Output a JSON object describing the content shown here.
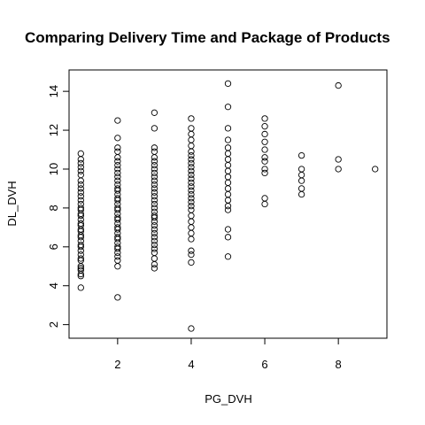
{
  "chart_data": {
    "type": "scatter",
    "title": "Comparing Delivery Time and Package of Products",
    "xlabel": "PG_DVH",
    "ylabel": "DL_DVH",
    "xlim": [
      0.68,
      9.32
    ],
    "ylim": [
      1.3,
      15.1
    ],
    "x_ticks": [
      2,
      4,
      6,
      8
    ],
    "y_ticks": [
      2,
      4,
      6,
      8,
      10,
      12,
      14
    ],
    "grid": false,
    "legend": "none",
    "point_color": "#000000",
    "points": [
      [
        1,
        3.9
      ],
      [
        1,
        4.5
      ],
      [
        1,
        4.6
      ],
      [
        1,
        4.8
      ],
      [
        1,
        4.9
      ],
      [
        1,
        5.0
      ],
      [
        1,
        5.3
      ],
      [
        1,
        5.4
      ],
      [
        1,
        5.6
      ],
      [
        1,
        5.8
      ],
      [
        1,
        6.0
      ],
      [
        1,
        6.1
      ],
      [
        1,
        6.3
      ],
      [
        1,
        6.5
      ],
      [
        1,
        6.6
      ],
      [
        1,
        6.8
      ],
      [
        1,
        6.9
      ],
      [
        1,
        7.1
      ],
      [
        1,
        7.2
      ],
      [
        1,
        7.4
      ],
      [
        1,
        7.6
      ],
      [
        1,
        7.7
      ],
      [
        1,
        7.9
      ],
      [
        1,
        8.0
      ],
      [
        1,
        8.2
      ],
      [
        1,
        8.4
      ],
      [
        1,
        8.6
      ],
      [
        1,
        8.8
      ],
      [
        1,
        9.0
      ],
      [
        1,
        9.2
      ],
      [
        1,
        9.4
      ],
      [
        1,
        9.7
      ],
      [
        1,
        9.9
      ],
      [
        1,
        10.1
      ],
      [
        1,
        10.3
      ],
      [
        1,
        10.5
      ],
      [
        1,
        10.8
      ],
      [
        2,
        3.4
      ],
      [
        2,
        5.0
      ],
      [
        2,
        5.3
      ],
      [
        2,
        5.5
      ],
      [
        2,
        5.7
      ],
      [
        2,
        5.9
      ],
      [
        2,
        6.0
      ],
      [
        2,
        6.2
      ],
      [
        2,
        6.4
      ],
      [
        2,
        6.5
      ],
      [
        2,
        6.7
      ],
      [
        2,
        6.9
      ],
      [
        2,
        7.0
      ],
      [
        2,
        7.2
      ],
      [
        2,
        7.4
      ],
      [
        2,
        7.5
      ],
      [
        2,
        7.7
      ],
      [
        2,
        7.9
      ],
      [
        2,
        8.0
      ],
      [
        2,
        8.2
      ],
      [
        2,
        8.4
      ],
      [
        2,
        8.5
      ],
      [
        2,
        8.7
      ],
      [
        2,
        8.9
      ],
      [
        2,
        9.0
      ],
      [
        2,
        9.2
      ],
      [
        2,
        9.4
      ],
      [
        2,
        9.6
      ],
      [
        2,
        9.8
      ],
      [
        2,
        10.0
      ],
      [
        2,
        10.2
      ],
      [
        2,
        10.4
      ],
      [
        2,
        10.6
      ],
      [
        2,
        10.9
      ],
      [
        2,
        11.1
      ],
      [
        2,
        11.6
      ],
      [
        2,
        12.5
      ],
      [
        3,
        4.9
      ],
      [
        3,
        5.1
      ],
      [
        3,
        5.4
      ],
      [
        3,
        5.7
      ],
      [
        3,
        5.9
      ],
      [
        3,
        6.1
      ],
      [
        3,
        6.3
      ],
      [
        3,
        6.5
      ],
      [
        3,
        6.7
      ],
      [
        3,
        6.9
      ],
      [
        3,
        7.1
      ],
      [
        3,
        7.3
      ],
      [
        3,
        7.5
      ],
      [
        3,
        7.6
      ],
      [
        3,
        7.8
      ],
      [
        3,
        8.0
      ],
      [
        3,
        8.2
      ],
      [
        3,
        8.4
      ],
      [
        3,
        8.6
      ],
      [
        3,
        8.8
      ],
      [
        3,
        9.0
      ],
      [
        3,
        9.2
      ],
      [
        3,
        9.4
      ],
      [
        3,
        9.6
      ],
      [
        3,
        9.8
      ],
      [
        3,
        10.0
      ],
      [
        3,
        10.2
      ],
      [
        3,
        10.4
      ],
      [
        3,
        10.6
      ],
      [
        3,
        10.9
      ],
      [
        3,
        11.1
      ],
      [
        3,
        12.1
      ],
      [
        3,
        12.9
      ],
      [
        4,
        1.8
      ],
      [
        4,
        5.2
      ],
      [
        4,
        5.6
      ],
      [
        4,
        5.8
      ],
      [
        4,
        6.4
      ],
      [
        4,
        6.7
      ],
      [
        4,
        7.0
      ],
      [
        4,
        7.3
      ],
      [
        4,
        7.6
      ],
      [
        4,
        7.9
      ],
      [
        4,
        8.1
      ],
      [
        4,
        8.3
      ],
      [
        4,
        8.5
      ],
      [
        4,
        8.7
      ],
      [
        4,
        8.9
      ],
      [
        4,
        9.1
      ],
      [
        4,
        9.3
      ],
      [
        4,
        9.5
      ],
      [
        4,
        9.7
      ],
      [
        4,
        9.9
      ],
      [
        4,
        10.1
      ],
      [
        4,
        10.3
      ],
      [
        4,
        10.5
      ],
      [
        4,
        10.7
      ],
      [
        4,
        10.9
      ],
      [
        4,
        11.2
      ],
      [
        4,
        11.5
      ],
      [
        4,
        11.8
      ],
      [
        4,
        12.1
      ],
      [
        4,
        12.6
      ],
      [
        5,
        5.5
      ],
      [
        5,
        6.5
      ],
      [
        5,
        6.9
      ],
      [
        5,
        7.9
      ],
      [
        5,
        8.1
      ],
      [
        5,
        8.4
      ],
      [
        5,
        8.7
      ],
      [
        5,
        9.0
      ],
      [
        5,
        9.3
      ],
      [
        5,
        9.6
      ],
      [
        5,
        9.9
      ],
      [
        5,
        10.2
      ],
      [
        5,
        10.5
      ],
      [
        5,
        10.8
      ],
      [
        5,
        11.1
      ],
      [
        5,
        11.5
      ],
      [
        5,
        12.1
      ],
      [
        5,
        13.2
      ],
      [
        5,
        14.4
      ],
      [
        6,
        8.2
      ],
      [
        6,
        8.5
      ],
      [
        6,
        9.8
      ],
      [
        6,
        10.0
      ],
      [
        6,
        10.4
      ],
      [
        6,
        10.6
      ],
      [
        6,
        11.0
      ],
      [
        6,
        11.4
      ],
      [
        6,
        11.8
      ],
      [
        6,
        12.2
      ],
      [
        6,
        12.6
      ],
      [
        7,
        8.7
      ],
      [
        7,
        9.0
      ],
      [
        7,
        9.4
      ],
      [
        7,
        9.7
      ],
      [
        7,
        10.0
      ],
      [
        7,
        10.7
      ],
      [
        8,
        10.0
      ],
      [
        8,
        10.5
      ],
      [
        8,
        14.3
      ],
      [
        9,
        10.0
      ]
    ]
  }
}
